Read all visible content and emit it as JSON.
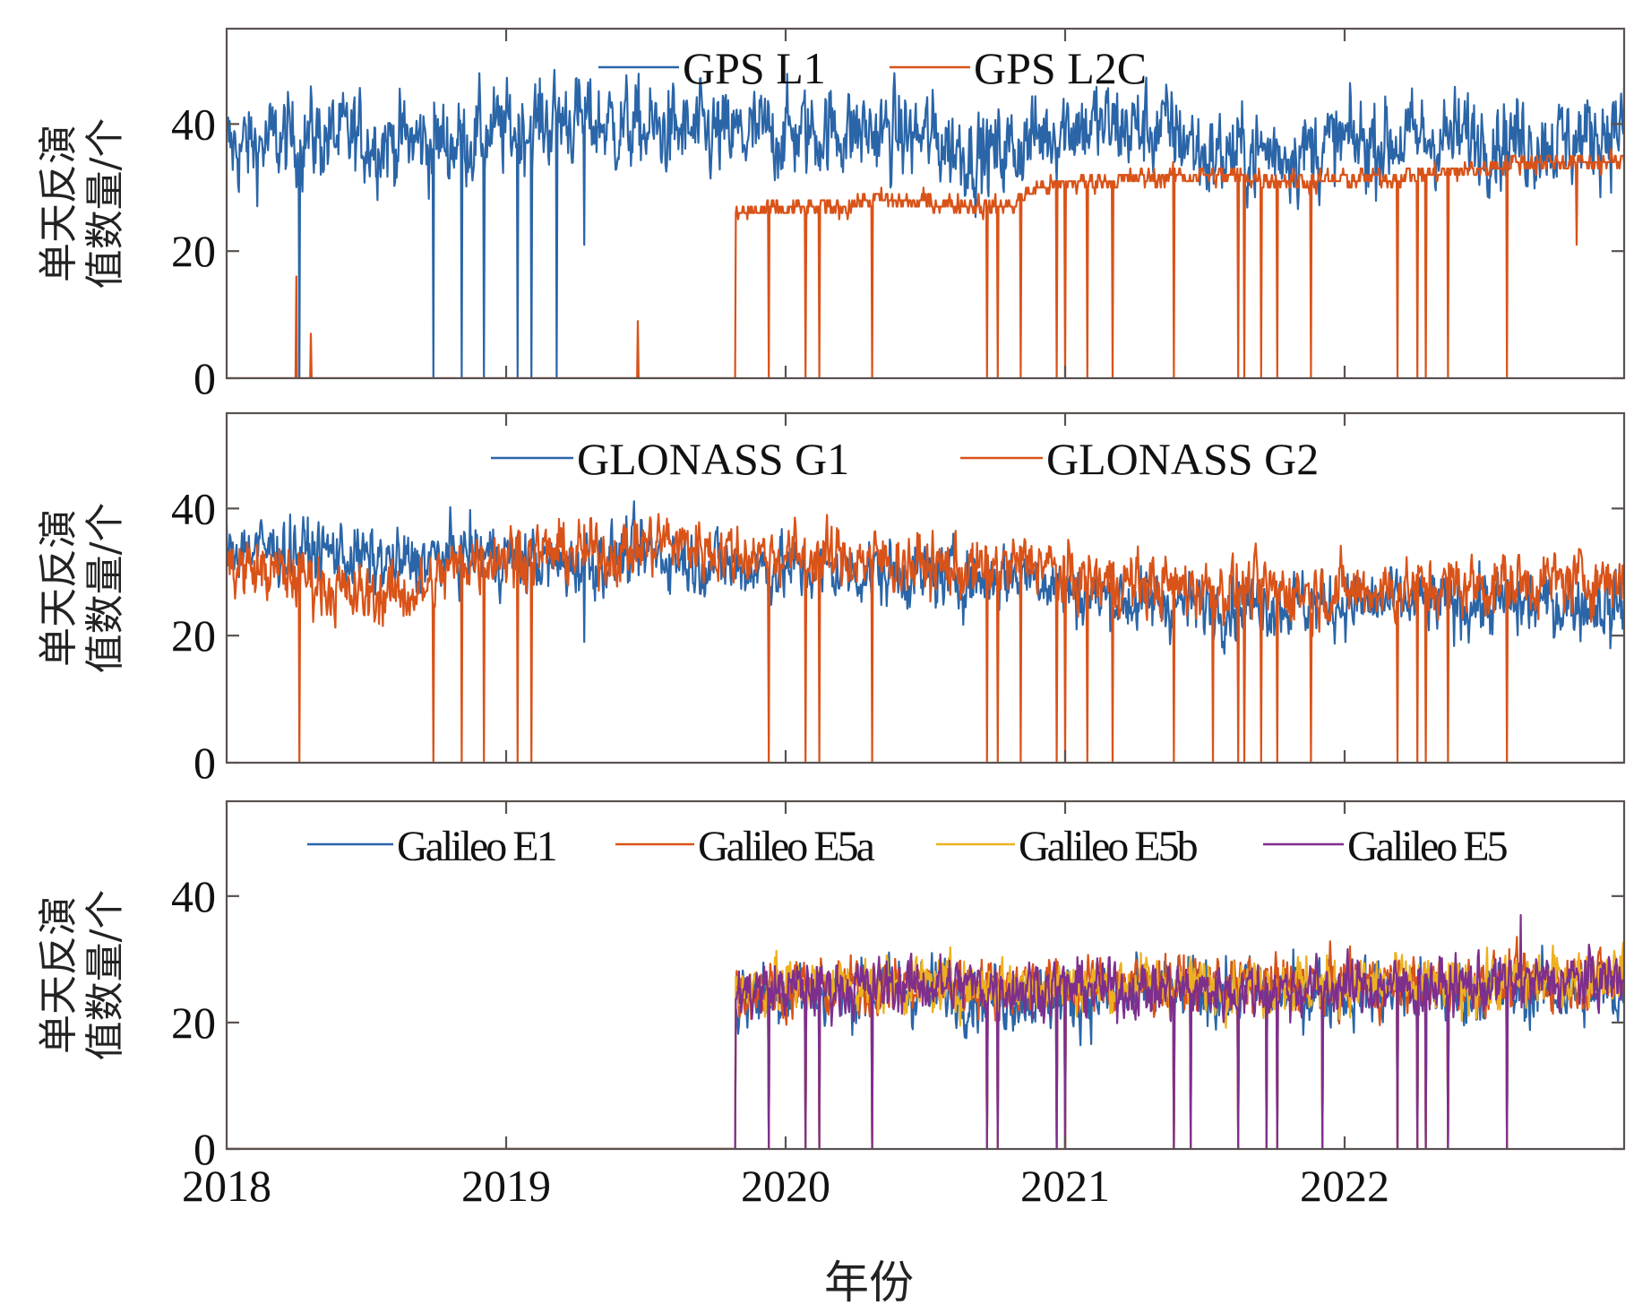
{
  "chart_data": [
    {
      "type": "line",
      "panel": "GPS",
      "ylabel": "单天反演值数量/个",
      "xlabel": "",
      "xlim": [
        2018,
        2023
      ],
      "ylim": [
        0,
        55
      ],
      "yticks": [
        0,
        20,
        40
      ],
      "xticks": [
        2019,
        2020,
        2021,
        2022
      ],
      "xtick_labels": [],
      "legend": {
        "placement": "top-center",
        "orientation": "horizontal"
      },
      "series": [
        {
          "name": "GPS L1",
          "color": "#2a65a8",
          "start": 2018.0,
          "end": 2023.0,
          "noise": 3.2,
          "trend": [
            [
              2018.0,
              36
            ],
            [
              2018.3,
              38
            ],
            [
              2018.8,
              37
            ],
            [
              2019.0,
              39
            ],
            [
              2019.2,
              41
            ],
            [
              2019.5,
              39
            ],
            [
              2019.8,
              38
            ],
            [
              2020.2,
              39
            ],
            [
              2020.5,
              38
            ],
            [
              2020.7,
              35
            ],
            [
              2020.8,
              36
            ],
            [
              2021.0,
              40
            ],
            [
              2021.4,
              39
            ],
            [
              2021.5,
              35
            ],
            [
              2021.9,
              36
            ],
            [
              2022.0,
              37
            ],
            [
              2022.5,
              38
            ],
            [
              2022.8,
              37
            ],
            [
              2023.0,
              40
            ]
          ],
          "dropouts": [
            2018.26,
            2018.74,
            2018.84,
            2018.92,
            2019.04,
            2019.09,
            2019.18
          ],
          "dips": [
            [
              2019.28,
              21
            ]
          ]
        },
        {
          "name": "GPS L2C",
          "color": "#d95319",
          "start": 2019.82,
          "end": 2023.0,
          "noise": 0.7,
          "trend": [
            [
              2019.82,
              26
            ],
            [
              2020.2,
              27
            ],
            [
              2020.3,
              28
            ],
            [
              2020.8,
              27
            ],
            [
              2020.9,
              30
            ],
            [
              2021.1,
              31
            ],
            [
              2021.5,
              32
            ],
            [
              2021.9,
              31
            ],
            [
              2022.3,
              32
            ],
            [
              2022.5,
              33
            ],
            [
              2022.6,
              34
            ],
            [
              2023.0,
              34
            ]
          ],
          "pre_start_spikes": [
            [
              2018.25,
              16
            ],
            [
              2018.3,
              7
            ],
            [
              2019.47,
              9
            ]
          ],
          "dropouts": [
            2019.94,
            2020.07,
            2020.12,
            2020.31,
            2020.72,
            2020.76,
            2020.84,
            2020.97,
            2021.0,
            2021.08,
            2021.17,
            2021.39,
            2021.62,
            2021.64,
            2021.7,
            2021.76,
            2021.88,
            2022.19,
            2022.26,
            2022.29,
            2022.37,
            2022.58
          ],
          "dips": [
            [
              2022.83,
              21
            ]
          ]
        }
      ]
    },
    {
      "type": "line",
      "panel": "GLONASS",
      "ylabel": "单天反演值数量/个",
      "xlabel": "",
      "xlim": [
        2018,
        2023
      ],
      "ylim": [
        0,
        55
      ],
      "yticks": [
        0,
        20,
        40
      ],
      "xticks": [
        2019,
        2020,
        2021,
        2022
      ],
      "xtick_labels": [],
      "legend": {
        "placement": "top-center",
        "orientation": "horizontal"
      },
      "series": [
        {
          "name": "GLONASS G1",
          "color": "#2a65a8",
          "start": 2018.0,
          "end": 2023.0,
          "noise": 2.3,
          "trend": [
            [
              2018.0,
              34
            ],
            [
              2018.4,
              33
            ],
            [
              2018.6,
              31
            ],
            [
              2018.9,
              33
            ],
            [
              2019.2,
              31
            ],
            [
              2019.5,
              33
            ],
            [
              2019.8,
              31
            ],
            [
              2020.3,
              30
            ],
            [
              2020.7,
              29
            ],
            [
              2020.9,
              30
            ],
            [
              2021.0,
              27
            ],
            [
              2021.3,
              25
            ],
            [
              2022.0,
              25
            ],
            [
              2023.0,
              25
            ]
          ],
          "dropouts": [],
          "dips": [
            [
              2019.28,
              19
            ],
            [
              2022.95,
              18
            ]
          ]
        },
        {
          "name": "GLONASS G2",
          "color": "#d95319",
          "start": 2018.0,
          "end": 2023.0,
          "noise": 2.2,
          "trend": [
            [
              2018.0,
              31
            ],
            [
              2018.3,
              29
            ],
            [
              2018.45,
              26
            ],
            [
              2018.7,
              27
            ],
            [
              2018.85,
              32
            ],
            [
              2019.0,
              33
            ],
            [
              2019.4,
              33
            ],
            [
              2019.55,
              35
            ],
            [
              2019.8,
              33
            ],
            [
              2020.3,
              32
            ],
            [
              2020.7,
              30
            ],
            [
              2020.9,
              32
            ],
            [
              2021.0,
              29
            ],
            [
              2021.3,
              28
            ],
            [
              2021.8,
              27
            ],
            [
              2022.0,
              27
            ],
            [
              2022.5,
              28
            ],
            [
              2023.0,
              29
            ]
          ],
          "dropouts": [
            2018.26,
            2018.74,
            2018.84,
            2018.92,
            2019.04,
            2019.09,
            2019.94,
            2020.07,
            2020.12,
            2020.31,
            2020.72,
            2020.76,
            2020.84,
            2020.97,
            2021.0,
            2021.08,
            2021.17,
            2021.39,
            2021.53,
            2021.62,
            2021.64,
            2021.7,
            2021.76,
            2021.88,
            2022.19,
            2022.26,
            2022.29,
            2022.37,
            2022.58
          ],
          "dips": []
        }
      ]
    },
    {
      "type": "line",
      "panel": "Galileo",
      "ylabel": "单天反演值数量/个",
      "xlabel": "年份",
      "xlim": [
        2018,
        2023
      ],
      "ylim": [
        0,
        55
      ],
      "yticks": [
        0,
        20,
        40
      ],
      "xticks": [
        2018,
        2019,
        2020,
        2021,
        2022
      ],
      "xtick_labels": [
        "2018",
        "2019",
        "2020",
        "2021",
        "2022"
      ],
      "legend": {
        "placement": "top-center",
        "orientation": "horizontal"
      },
      "series": [
        {
          "name": "Galileo E1",
          "color": "#2a65a8",
          "start": 2019.82,
          "end": 2023.0,
          "noise": 2.4,
          "trend": [
            [
              2019.82,
              23
            ],
            [
              2019.9,
              25
            ],
            [
              2020.5,
              25
            ],
            [
              2021.0,
              24
            ],
            [
              2021.5,
              25
            ],
            [
              2022.5,
              25
            ],
            [
              2023.0,
              25
            ]
          ],
          "dropouts": [
            2019.94,
            2020.07,
            2020.12,
            2020.31,
            2020.72,
            2020.76,
            2020.97,
            2021.0,
            2021.39,
            2021.45,
            2021.62,
            2021.72,
            2021.76,
            2021.92,
            2022.19,
            2022.26,
            2022.29,
            2022.37,
            2022.58
          ],
          "dips": []
        },
        {
          "name": "Galileo E5a",
          "color": "#d95319",
          "start": 2019.82,
          "end": 2023.0,
          "noise": 2.0,
          "trend": [
            [
              2019.82,
              25
            ],
            [
              2020.5,
              26
            ],
            [
              2021.5,
              26
            ],
            [
              2022.5,
              26
            ],
            [
              2023.0,
              27
            ]
          ],
          "dropouts": [
            2019.94,
            2020.07,
            2020.12,
            2020.31,
            2020.72,
            2020.76,
            2020.97,
            2021.0,
            2021.39,
            2021.45,
            2021.62,
            2021.72,
            2021.76,
            2021.92,
            2022.19,
            2022.26,
            2022.29,
            2022.37,
            2022.58
          ],
          "dips": []
        },
        {
          "name": "Galileo E5b",
          "color": "#edb120",
          "start": 2019.82,
          "end": 2023.0,
          "noise": 2.0,
          "trend": [
            [
              2019.82,
              26
            ],
            [
              2020.5,
              26
            ],
            [
              2021.5,
              26
            ],
            [
              2022.5,
              26
            ],
            [
              2023.0,
              28
            ]
          ],
          "dropouts": [
            2019.94,
            2020.07,
            2020.12,
            2020.31,
            2020.72,
            2020.76,
            2020.97,
            2021.0,
            2021.39,
            2021.45,
            2021.62,
            2021.72,
            2021.76,
            2021.92,
            2022.19,
            2022.26,
            2022.29,
            2022.37,
            2022.58
          ],
          "dips": []
        },
        {
          "name": "Galileo E5",
          "color": "#7e2f8e",
          "start": 2019.82,
          "end": 2023.0,
          "noise": 2.0,
          "trend": [
            [
              2019.82,
              25
            ],
            [
              2020.5,
              26
            ],
            [
              2021.5,
              25
            ],
            [
              2022.5,
              26
            ],
            [
              2023.0,
              27
            ]
          ],
          "dropouts": [
            2019.94,
            2020.07,
            2020.12,
            2020.31,
            2020.72,
            2020.76,
            2020.97,
            2021.0,
            2021.39,
            2021.45,
            2021.62,
            2021.72,
            2021.76,
            2021.92,
            2022.19,
            2022.26,
            2022.29,
            2022.37,
            2022.58
          ],
          "dips": [
            [
              2022.63,
              37
            ]
          ]
        }
      ]
    }
  ],
  "axis_text": {
    "ylabel_line1": "单天反演",
    "ylabel_line2": "值数量/个",
    "xlabel": "年份"
  }
}
